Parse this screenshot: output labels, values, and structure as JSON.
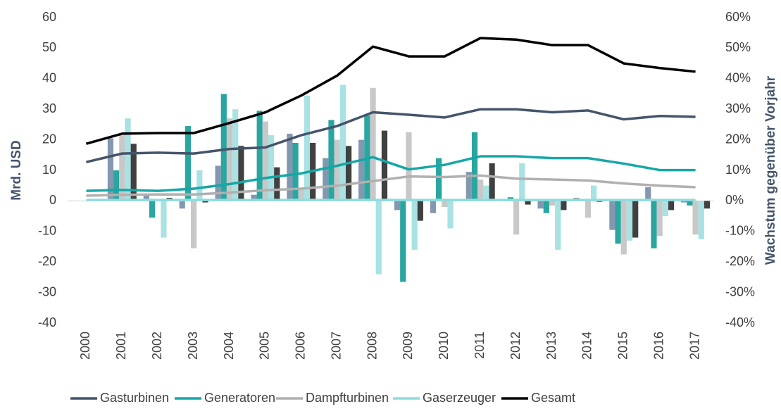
{
  "chart_data": {
    "type": "combo",
    "ylabel": "Mrd. USD",
    "y2label": "Wachstum gegenüber Vorjahr",
    "categories": [
      "2000",
      "2001",
      "2002",
      "2003",
      "2004",
      "2005",
      "2006",
      "2007",
      "2008",
      "2009",
      "2010",
      "2011",
      "2012",
      "2013",
      "2014",
      "2015",
      "2016",
      "2017"
    ],
    "ylim": [
      -40,
      60
    ],
    "yticks": [
      -40,
      -30,
      -20,
      -10,
      0,
      10,
      20,
      30,
      40,
      50,
      60
    ],
    "y2lim": [
      -40,
      60
    ],
    "y2ticks": [
      {
        "value": -40,
        "label": "-40%"
      },
      {
        "value": -30,
        "label": "-30%"
      },
      {
        "value": -20,
        "label": "-20%"
      },
      {
        "value": -10,
        "label": "-10%"
      },
      {
        "value": 0,
        "label": "0%"
      },
      {
        "value": 10,
        "label": "10%"
      },
      {
        "value": 20,
        "label": "20%"
      },
      {
        "value": 30,
        "label": "30%"
      },
      {
        "value": 40,
        "label": "40%"
      },
      {
        "value": 50,
        "label": "50%"
      },
      {
        "value": 60,
        "label": "60%"
      }
    ],
    "grid": false,
    "legend": "bottom",
    "series": [
      {
        "name": "Gasturbinen",
        "color": "#44546a",
        "values": [
          12.7,
          15.5,
          15.8,
          15.5,
          17,
          17.5,
          21.5,
          24.5,
          29,
          28.2,
          27.3,
          30,
          30,
          29,
          29.6,
          26.7,
          27.8,
          27.5
        ],
        "growth": {
          "axis": "y2",
          "color": "#8497b0",
          "values": [
            null,
            20.5,
            2,
            -2.5,
            11.5,
            2,
            22,
            14,
            20,
            -3,
            -4,
            9.5,
            0.3,
            -2.5,
            1,
            -9.5,
            4.5,
            -0.5
          ]
        }
      },
      {
        "name": "Generatoren",
        "color": "#17a6a6",
        "values": [
          3.3,
          3.6,
          3.3,
          4.0,
          5.5,
          7.5,
          9,
          11.5,
          14.3,
          10.3,
          11.8,
          14.6,
          14.6,
          14,
          14,
          12.2,
          10.1,
          10.1
        ],
        "growth": {
          "axis": "y2",
          "color": "#2aa6a0",
          "values": [
            null,
            10,
            -5.5,
            24.5,
            35,
            29.5,
            19,
            26.5,
            28,
            -26.5,
            14,
            22.5,
            1.2,
            -4,
            0.5,
            -14,
            -15.5,
            -1.5
          ]
        }
      },
      {
        "name": "Dampfturbinen",
        "color": "#b0b0b0",
        "values": [
          1.7,
          2.0,
          2.1,
          2.1,
          2.7,
          3.5,
          4.0,
          5.0,
          6.5,
          8.0,
          7.8,
          8.3,
          7.3,
          7.0,
          6.7,
          5.7,
          5.0,
          4.5
        ],
        "growth": {
          "axis": "y2",
          "color": "#c8c8c8",
          "values": [
            null,
            21.5,
            0.5,
            -15.5,
            27,
            26,
            4,
            20,
            37,
            22.5,
            -2,
            7,
            -11,
            -1.5,
            -5.5,
            -17.5,
            -11.5,
            -11
          ]
        }
      },
      {
        "name": "Gaserzeuger",
        "color": "#8fdcdc",
        "values": [
          0.3,
          0.3,
          0.3,
          0.3,
          0.3,
          0.3,
          0.3,
          0.3,
          0.3,
          0.3,
          0.3,
          0.3,
          0.3,
          0.3,
          0.3,
          0.3,
          0.3,
          0.3
        ],
        "growth": {
          "axis": "y2",
          "color": "#a8e2e2",
          "values": [
            null,
            27,
            -12,
            10,
            30,
            21.5,
            34.5,
            38,
            -24,
            -16,
            -9,
            5,
            12.3,
            -16,
            5,
            -13,
            -5,
            -12.5
          ]
        }
      },
      {
        "name": "Gesamt",
        "color": "#000000",
        "values": [
          18.7,
          22,
          22.2,
          22.2,
          25.5,
          29,
          34.5,
          41,
          50.5,
          47.3,
          47.3,
          53.3,
          52.8,
          51,
          51,
          45,
          43.5,
          42.3
        ],
        "growth": {
          "axis": "y2",
          "color": "#404040",
          "values": [
            null,
            18.7,
            1,
            -0.5,
            18,
            11,
            19,
            18,
            23,
            -6.5,
            0.5,
            12.3,
            -1.2,
            -3,
            -0.3,
            -12,
            -3,
            -2.5
          ]
        }
      }
    ]
  }
}
